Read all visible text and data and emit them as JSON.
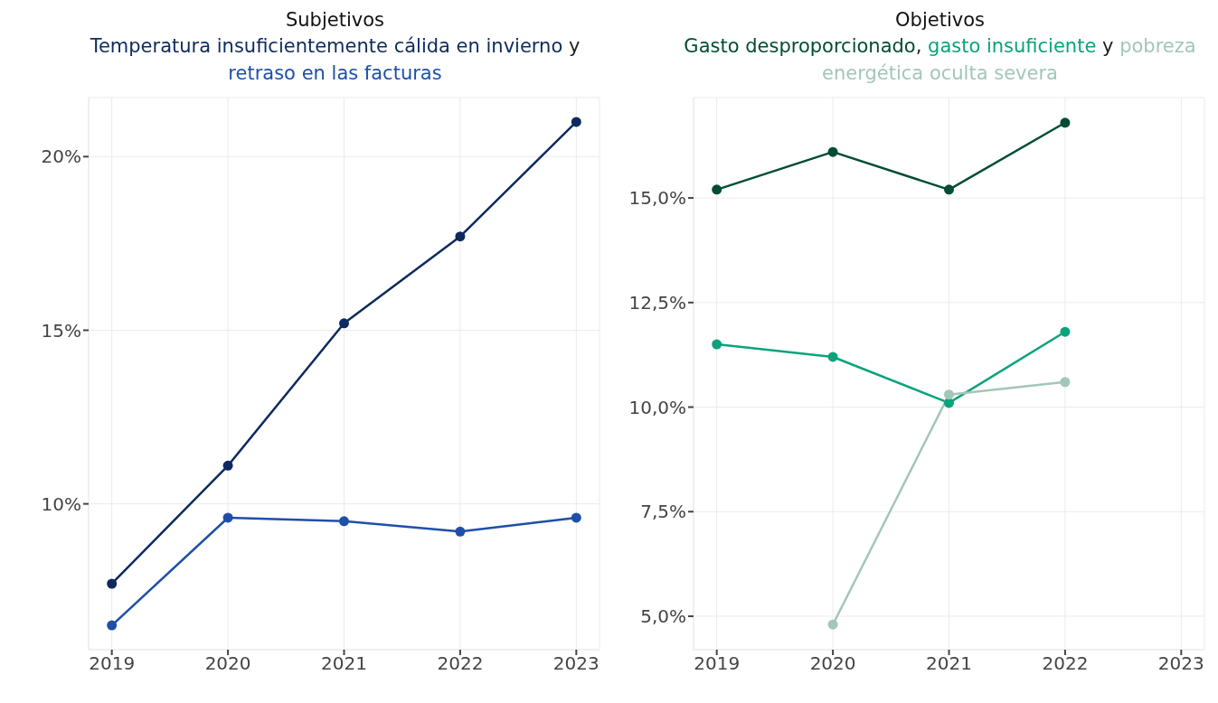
{
  "chart_data": [
    {
      "type": "line",
      "title": "Subjetivos",
      "annotations": [
        " y "
      ],
      "x": [
        2019,
        2020,
        2021,
        2022,
        2023
      ],
      "xlim": [
        2018.8,
        2023.2
      ],
      "xticks": [
        2019,
        2020,
        2021,
        2022,
        2023
      ],
      "ylim": [
        5.8,
        21.7
      ],
      "yticks": [
        {
          "value": 10,
          "label": "10%"
        },
        {
          "value": 15,
          "label": "15%"
        },
        {
          "value": 20,
          "label": "20%"
        }
      ],
      "grid": true,
      "legend": false,
      "marker": "circle",
      "line_style": "solid",
      "series": [
        {
          "name": "Temperatura insuficientemente cálida en invierno",
          "color": "#0d2a5e",
          "values": [
            7.7,
            11.1,
            15.2,
            17.7,
            21.0
          ]
        },
        {
          "name": "retraso en las facturas",
          "color": "#1f4fa8",
          "values": [
            6.5,
            9.6,
            9.5,
            9.2,
            9.6
          ]
        }
      ]
    },
    {
      "type": "line",
      "title": "Objetivos",
      "annotations": [
        ", ",
        " y "
      ],
      "x": [
        2019,
        2020,
        2021,
        2022
      ],
      "xlim": [
        2018.8,
        2023.2
      ],
      "xticks": [
        2019,
        2020,
        2021,
        2022,
        2023
      ],
      "ylim": [
        4.2,
        17.4
      ],
      "yticks": [
        {
          "value": 5,
          "label": "5,0%"
        },
        {
          "value": 7.5,
          "label": "7,5%"
        },
        {
          "value": 10,
          "label": "10,0%"
        },
        {
          "value": 12.5,
          "label": "12,5%"
        },
        {
          "value": 15,
          "label": "15,0%"
        }
      ],
      "grid": true,
      "legend": false,
      "marker": "circle",
      "line_style": "solid",
      "series": [
        {
          "name": "Gasto desproporcionado",
          "color": "#004d35",
          "values": [
            15.2,
            16.1,
            15.2,
            16.8
          ]
        },
        {
          "name": "gasto insuficiente",
          "color": "#0aa37c",
          "values": [
            11.5,
            11.2,
            10.1,
            11.8
          ]
        },
        {
          "name": "pobreza energética oculta severa",
          "color": "#a3c6b8",
          "values": [
            null,
            4.8,
            10.3,
            10.6
          ]
        }
      ]
    }
  ]
}
